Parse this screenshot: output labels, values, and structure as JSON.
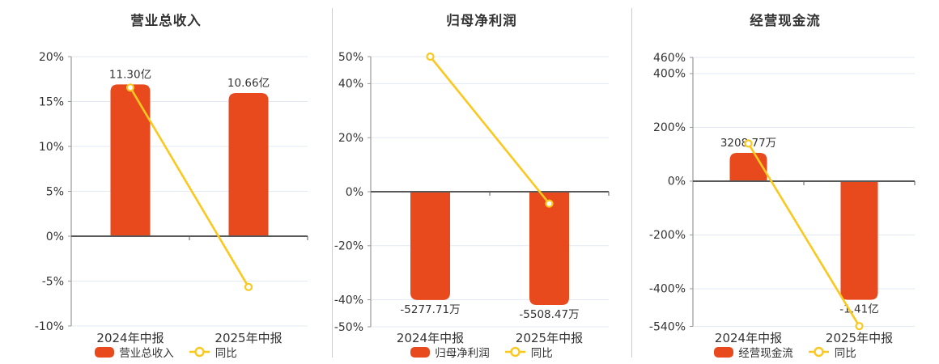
{
  "colors": {
    "bar": "#E84A1E",
    "line": "#FAC81E",
    "grid": "#E3E9F3",
    "zero_line": "#595959",
    "axis": "#999999",
    "separator": "#CCCCCC",
    "text": "#333333",
    "background": "#FFFFFF"
  },
  "chart_data": [
    {
      "type": "bar+line",
      "title": "营业总收入",
      "categories": [
        "2024年中报",
        "2025年中报"
      ],
      "bar_series": {
        "name": "营业总收入",
        "value_labels": [
          "11.30亿",
          "10.66亿"
        ],
        "axis_positions_pct": [
          16.9,
          15.95
        ]
      },
      "line_series": {
        "name": "同比",
        "values_pct": [
          16.55,
          -5.66
        ]
      },
      "yticks": [
        20,
        15,
        10,
        5,
        0,
        -5,
        -10
      ],
      "ylim": [
        -10,
        20
      ],
      "ytick_suffix": "%",
      "grid": true,
      "legend_position": "bottom"
    },
    {
      "type": "bar+line",
      "title": "归母净利润",
      "categories": [
        "2024年中报",
        "2025年中报"
      ],
      "bar_series": {
        "name": "归母净利润",
        "value_labels": [
          "-5277.71万",
          "-5508.47万"
        ],
        "axis_positions_pct": [
          -40.1,
          -41.9
        ]
      },
      "line_series": {
        "name": "同比",
        "values_pct": [
          50,
          -4.4
        ]
      },
      "yticks": [
        50,
        40,
        20,
        0,
        -20,
        -40,
        -50
      ],
      "ylim": [
        -50,
        50
      ],
      "ytick_suffix": "%",
      "grid": true,
      "legend_position": "bottom"
    },
    {
      "type": "bar+line",
      "title": "经营现金流",
      "categories": [
        "2024年中报",
        "2025年中报"
      ],
      "bar_series": {
        "name": "经营现金流",
        "value_labels": [
          "3208.77万",
          "-1.41亿"
        ],
        "axis_positions_pct": [
          105,
          -441
        ]
      },
      "line_series": {
        "name": "同比",
        "values_pct": [
          140,
          -539
        ]
      },
      "yticks": [
        460,
        400,
        200,
        0,
        -200,
        -400,
        -540
      ],
      "ylim": [
        -540,
        460
      ],
      "ytick_suffix": "%",
      "grid": true,
      "legend_position": "bottom"
    }
  ]
}
